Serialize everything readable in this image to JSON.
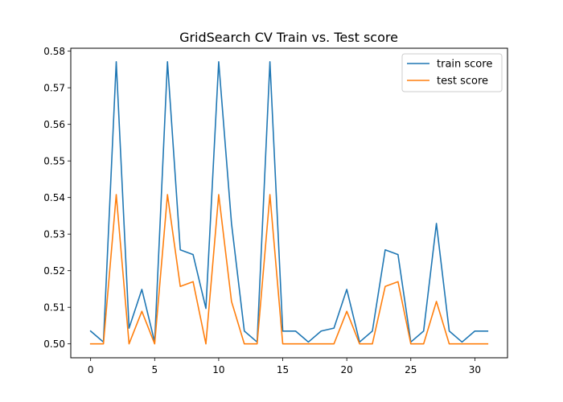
{
  "chart_data": {
    "type": "line",
    "title": "GridSearch CV Train vs. Test score",
    "xlabel": "",
    "ylabel": "",
    "xlim": [
      -1.55,
      32.55
    ],
    "ylim": [
      0.4962,
      0.5808
    ],
    "xticks": [
      0,
      5,
      10,
      15,
      20,
      25,
      30
    ],
    "yticks": [
      0.5,
      0.51,
      0.52,
      0.53,
      0.54,
      0.55,
      0.56,
      0.57,
      0.58
    ],
    "ytick_labels": [
      "0.50",
      "0.51",
      "0.52",
      "0.53",
      "0.54",
      "0.55",
      "0.56",
      "0.57",
      "0.58"
    ],
    "grid": false,
    "legend_position": "top-right",
    "x": [
      0,
      1,
      2,
      3,
      4,
      5,
      6,
      7,
      8,
      9,
      10,
      11,
      12,
      13,
      14,
      15,
      16,
      17,
      18,
      19,
      20,
      21,
      22,
      23,
      24,
      25,
      26,
      27,
      28,
      29,
      30,
      31
    ],
    "series": [
      {
        "name": "train score",
        "color": "#1f77b4",
        "values": [
          0.5035,
          0.5005,
          0.5771,
          0.5043,
          0.5149,
          0.5005,
          0.5771,
          0.5257,
          0.5244,
          0.5097,
          0.5771,
          0.5329,
          0.5035,
          0.5005,
          0.5771,
          0.5035,
          0.5035,
          0.5005,
          0.5035,
          0.5043,
          0.5149,
          0.5005,
          0.5035,
          0.5257,
          0.5244,
          0.5005,
          0.5035,
          0.5329,
          0.5035,
          0.5005,
          0.5035,
          0.5035
        ]
      },
      {
        "name": "test score",
        "color": "#ff7f0e",
        "values": [
          0.5,
          0.5,
          0.5408,
          0.5,
          0.5089,
          0.5,
          0.5408,
          0.5157,
          0.517,
          0.5,
          0.5408,
          0.5116,
          0.5,
          0.5,
          0.5408,
          0.5,
          0.5,
          0.5,
          0.5,
          0.5,
          0.5089,
          0.5,
          0.5,
          0.5157,
          0.517,
          0.5,
          0.5,
          0.5116,
          0.5,
          0.5,
          0.5,
          0.5
        ]
      }
    ]
  }
}
